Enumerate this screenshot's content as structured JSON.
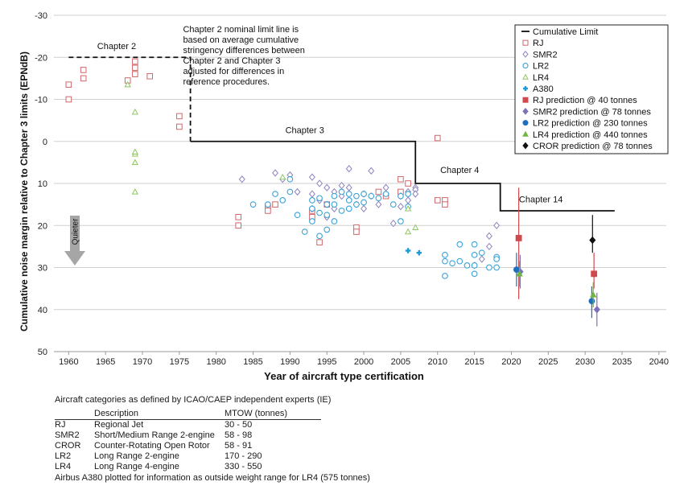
{
  "chart_data": {
    "type": "scatter",
    "title": "",
    "xlabel": "Year of aircraft type certification",
    "ylabel": "Cumulative noise margin relative to Chapter 3 limits (EPNdB)",
    "xlim": [
      1958,
      2041
    ],
    "ylim": [
      50,
      -30
    ],
    "y_inverted": true,
    "x_ticks": [
      "1960",
      "1965",
      "1970",
      "1975",
      "1980",
      "1985",
      "1990",
      "1995",
      "2000",
      "2005",
      "2010",
      "2015",
      "2020",
      "2025",
      "2030",
      "2035",
      "2040"
    ],
    "y_ticks": [
      "-30",
      "-20",
      "-10",
      "0",
      "10",
      "20",
      "30",
      "40",
      "50"
    ],
    "grid": "horizontal",
    "legend_position": "top-right",
    "quieter_label": "Quieter",
    "cumulative_limit": {
      "name": "Cumulative Limit",
      "points": [
        [
          1960,
          -20
        ],
        [
          1976.5,
          -20
        ],
        [
          1976.5,
          0
        ],
        [
          2007,
          0
        ],
        [
          2007,
          10
        ],
        [
          2018.5,
          10
        ],
        [
          2018.5,
          16.5
        ],
        [
          2034,
          16.5
        ]
      ],
      "color": "#111111"
    },
    "limit_labels": [
      {
        "text": "Chapter 2",
        "x": 1966.5,
        "y": -22
      },
      {
        "text": "Chapter 3",
        "x": 1992,
        "y": -2
      },
      {
        "text": "Chapter 4",
        "x": 2013,
        "y": 7.5
      },
      {
        "text": "Chapter 14",
        "x": 2024,
        "y": 14.5
      }
    ],
    "annotation": [
      "Chapter 2 nominal limit line is",
      "based on average cumulative",
      "stringency differences between",
      "Chapter 2 and Chapter 3",
      "adjusted for differences in",
      "reference procedures."
    ],
    "series": [
      {
        "name": "RJ",
        "marker": "square",
        "color": "#d0676b",
        "x": [
          1960,
          1960,
          1962,
          1962,
          1968,
          1969,
          1969,
          1969,
          1971,
          1975,
          1975,
          1983,
          1983,
          1987,
          1987,
          1988,
          1993,
          1993,
          1994,
          1995,
          1999,
          1999,
          2002,
          2003,
          2005,
          2005,
          2006,
          2010,
          2010,
          2011,
          2011
        ],
        "y": [
          -13.5,
          -10,
          -17,
          -15,
          -14.5,
          -19,
          -17.5,
          -16,
          -15.5,
          -6,
          -3.5,
          18,
          20,
          15.5,
          16.5,
          15,
          16.5,
          18,
          24,
          15,
          20.5,
          21.5,
          12,
          13,
          9,
          12,
          10,
          -0.8,
          14,
          14,
          15
        ]
      },
      {
        "name": "SMR2",
        "marker": "diamond",
        "color": "#8d82bf",
        "x": [
          1983.5,
          1988,
          1989,
          1990,
          1991,
          1993,
          1993,
          1993,
          1994,
          1994,
          1995,
          1995,
          1995,
          1996,
          1996,
          1997,
          1997,
          1998,
          1998,
          1999,
          2000,
          2000,
          2001,
          2001,
          2002,
          2003,
          2004,
          2005,
          2005,
          2006,
          2006,
          2007,
          2007,
          2007,
          2015,
          2016,
          2017,
          2017,
          2018
        ],
        "y": [
          9,
          7.5,
          9,
          8,
          12,
          8.5,
          12.5,
          16,
          10,
          14,
          11,
          15,
          18,
          12,
          16,
          13,
          10.5,
          6.5,
          11,
          15,
          12.5,
          16,
          7,
          13,
          15,
          11,
          19.5,
          13,
          15.5,
          12,
          14,
          11,
          11.5,
          12.5,
          29.5,
          28,
          25,
          22.5,
          20
        ]
      },
      {
        "name": "LR2",
        "marker": "circle",
        "color": "#3aa2d8",
        "x": [
          1985,
          1987,
          1988,
          1989,
          1990,
          1990,
          1991,
          1992,
          1993,
          1993,
          1993,
          1994,
          1994,
          1994,
          1995,
          1995,
          1995,
          1996,
          1996,
          1996,
          1997,
          1997,
          1998,
          1998,
          1998,
          1999,
          1999,
          2000,
          2000,
          2001,
          2002,
          2003,
          2004,
          2005,
          2005,
          2006,
          2006,
          2011,
          2011,
          2011,
          2012,
          2013,
          2013,
          2014,
          2015,
          2015,
          2015,
          2015,
          2016,
          2017,
          2018,
          2018,
          2018
        ],
        "y": [
          15,
          15,
          12.5,
          14,
          9,
          12,
          17.5,
          21.5,
          14,
          16,
          19,
          13.5,
          17,
          22.5,
          15,
          17.5,
          21,
          13,
          15,
          19,
          12,
          16.5,
          12.5,
          14,
          16,
          13,
          15,
          12.5,
          14.5,
          13,
          13.5,
          12.5,
          15,
          13,
          19,
          12.5,
          15.5,
          27,
          28.5,
          32,
          29,
          24.5,
          28.5,
          29.5,
          24.5,
          27,
          29.5,
          31.5,
          26.5,
          30,
          27.5,
          28,
          30
        ]
      },
      {
        "name": "LR4",
        "marker": "triangle",
        "color": "#8ec760",
        "x": [
          1968,
          1969,
          1969,
          1969,
          1969,
          1969,
          1989,
          2006,
          2006,
          2007
        ],
        "y": [
          -13.5,
          -7,
          3,
          2.5,
          5,
          12,
          8.5,
          16,
          21.5,
          20.5
        ]
      },
      {
        "name": "A380",
        "marker": "plus",
        "color": "#1e9ad6",
        "x": [
          2006,
          2007.5
        ],
        "y": [
          26,
          26.5
        ]
      },
      {
        "name": "RJ prediction @ 40 tonnes",
        "marker": "filled-square",
        "color": "#d0494c",
        "x": [
          2021,
          2031.2
        ],
        "y": [
          23,
          31.5
        ],
        "err_lo": [
          12,
          5
        ],
        "err_hi": [
          14.5,
          3.5
        ]
      },
      {
        "name": "SMR2 prediction @ 78 tonnes",
        "marker": "filled-diamond",
        "color": "#7b72b8",
        "x": [
          2021.2,
          2031.6
        ],
        "y": [
          31,
          40
        ],
        "err_lo": [
          4,
          4
        ],
        "err_hi": [
          4,
          4
        ]
      },
      {
        "name": "LR2 prediction @ 230 tonnes",
        "marker": "filled-circle",
        "color": "#1f6ec0",
        "x": [
          2020.7,
          2030.9
        ],
        "y": [
          30.5,
          38
        ],
        "err_lo": [
          4,
          3.5
        ],
        "err_hi": [
          4,
          4
        ]
      },
      {
        "name": "LR4 prediction @ 440 tonnes",
        "marker": "filled-triangle",
        "color": "#6fb640",
        "x": [
          2021.1,
          2031.1
        ],
        "y": [
          31.5,
          36.5
        ],
        "err_lo": [
          3,
          3
        ],
        "err_hi": [
          3,
          3
        ]
      },
      {
        "name": "CROR prediction @ 78 tonnes",
        "marker": "filled-diamond",
        "color": "#111111",
        "x": [
          2031
        ],
        "y": [
          23.5
        ],
        "err_lo": [
          6
        ],
        "err_hi": [
          3
        ]
      }
    ],
    "colors": {
      "grid": "#cfcfcf",
      "limit": "#111111",
      "arrow": "#a6a6a6"
    }
  },
  "table": {
    "title": "Aircraft categories as defined by ICAO/CAEP independent experts (IE)",
    "headers": [
      "",
      "Description",
      "MTOW (tonnes)"
    ],
    "rows": [
      [
        "RJ",
        "Regional Jet",
        "30 - 50"
      ],
      [
        "SMR2",
        "Short/Medium Range 2-engine",
        "58 - 98"
      ],
      [
        "CROR",
        "Counter-Rotating Open Rotor",
        "58 - 91"
      ],
      [
        "LR2",
        "Long Range 2-engine",
        "170 - 290"
      ],
      [
        "LR4",
        "Long Range 4-engine",
        "330 - 550"
      ]
    ],
    "footnote": "Airbus A380 plotted for information as outside weight range for LR4 (575 tonnes)"
  }
}
